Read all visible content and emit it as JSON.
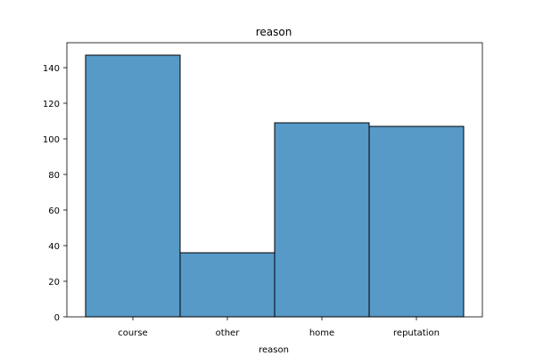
{
  "chart_data": {
    "type": "bar",
    "title": "reason",
    "xlabel": "reason",
    "ylabel": "",
    "categories": [
      "course",
      "other",
      "home",
      "reputation"
    ],
    "values": [
      147,
      36,
      109,
      107
    ],
    "ylim": [
      0,
      154
    ],
    "yticks": [
      0,
      20,
      40,
      60,
      80,
      100,
      120,
      140
    ],
    "grid": false,
    "bar_color": "#5799c7",
    "edge_color": "#000000"
  }
}
